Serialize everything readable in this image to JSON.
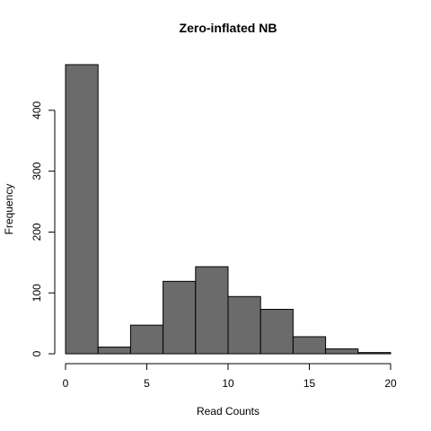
{
  "chart_data": {
    "type": "bar",
    "title": "Zero-inflated NB",
    "xlabel": "Read Counts",
    "ylabel": "Frequency",
    "bin_edges": [
      0,
      2,
      4,
      6,
      8,
      10,
      12,
      14,
      16,
      18,
      20
    ],
    "values": [
      475,
      11,
      47,
      119,
      143,
      94,
      73,
      28,
      8,
      2
    ],
    "xlim": [
      0,
      20
    ],
    "ylim": [
      0,
      475
    ],
    "x_ticks": [
      0,
      5,
      10,
      15,
      20
    ],
    "y_ticks": [
      0,
      100,
      200,
      300,
      400
    ],
    "x_tick_labels": [
      "0",
      "5",
      "10",
      "15",
      "20"
    ],
    "y_tick_labels": [
      "0",
      "100",
      "200",
      "300",
      "400"
    ],
    "bar_color": "#6b6b6b",
    "grid": false,
    "legend": "none"
  }
}
